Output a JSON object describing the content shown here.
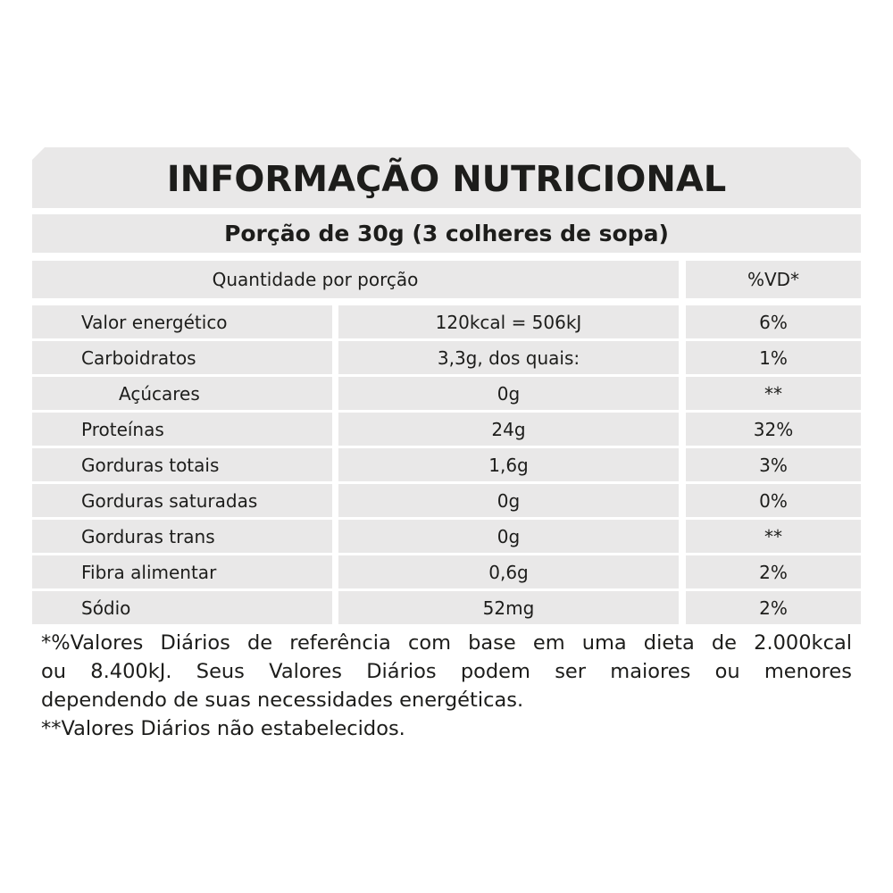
{
  "title": "INFORMAÇÃO NUTRICIONAL",
  "portion": "Porção de 30g (3 colheres de sopa)",
  "header": {
    "quantity": "Quantidade por porção",
    "dv": "%VD*"
  },
  "rows": [
    {
      "name": "Valor energético",
      "amount": "120kcal = 506kJ",
      "dv": "6%"
    },
    {
      "name": "Carboidratos",
      "amount": "3,3g, dos quais:",
      "dv": "1%"
    },
    {
      "name": "Açúcares",
      "amount": "0g",
      "dv": "**"
    },
    {
      "name": "Proteínas",
      "amount": "24g",
      "dv": "32%"
    },
    {
      "name": "Gorduras totais",
      "amount": "1,6g",
      "dv": "3%"
    },
    {
      "name": "Gorduras saturadas",
      "amount": "0g",
      "dv": "0%"
    },
    {
      "name": "Gorduras trans",
      "amount": "0g",
      "dv": "**"
    },
    {
      "name": "Fibra alimentar",
      "amount": "0,6g",
      "dv": "2%"
    },
    {
      "name": "Sódio",
      "amount": "52mg",
      "dv": "2%"
    }
  ],
  "footnotes": {
    "line1": "*%Valores Diários de referência com base em uma dieta de 2.000kcal",
    "line2": "ou 8.400kJ.  Seus Valores Diários podem ser maiores ou menores",
    "line3": "dependendo de suas necessidades energéticas.",
    "line4": "**Valores Diários não estabelecidos."
  }
}
